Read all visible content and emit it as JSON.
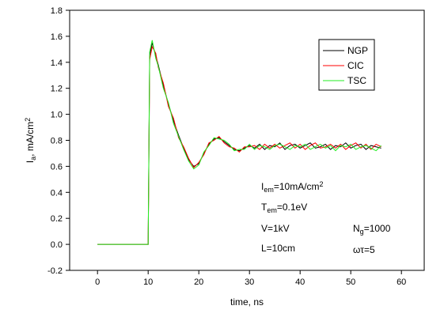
{
  "chart_data": {
    "type": "line",
    "xlabel": "time, ns",
    "ylabel": [
      {
        "text": "I"
      },
      {
        "sub": "a"
      },
      {
        "text": ", mA/cm"
      },
      {
        "sup": "2"
      }
    ],
    "x": [
      0,
      10,
      10.3,
      10.8,
      11.5,
      12,
      13,
      14,
      15,
      16,
      17,
      18,
      19,
      20,
      21,
      22,
      23,
      24,
      25,
      26,
      27,
      28,
      29,
      30,
      31,
      32,
      33,
      34,
      35,
      36,
      37,
      38,
      39,
      40,
      41,
      42,
      43,
      44,
      45,
      46,
      47,
      48,
      49,
      50,
      51,
      52,
      53,
      54,
      55,
      56
    ],
    "series": [
      {
        "name": "NGP",
        "color": "#000000",
        "values": [
          0,
          0,
          1.45,
          1.55,
          1.45,
          1.38,
          1.22,
          1.08,
          0.95,
          0.84,
          0.74,
          0.65,
          0.6,
          0.62,
          0.7,
          0.77,
          0.81,
          0.82,
          0.79,
          0.76,
          0.73,
          0.72,
          0.74,
          0.76,
          0.74,
          0.77,
          0.73,
          0.76,
          0.75,
          0.78,
          0.73,
          0.76,
          0.77,
          0.74,
          0.76,
          0.78,
          0.74,
          0.75,
          0.77,
          0.73,
          0.76,
          0.75,
          0.78,
          0.74,
          0.76,
          0.77,
          0.73,
          0.76,
          0.75,
          0.74
        ]
      },
      {
        "name": "CIC",
        "color": "#ff0000",
        "values": [
          0,
          0,
          1.42,
          1.52,
          1.47,
          1.36,
          1.24,
          1.06,
          0.97,
          0.82,
          0.75,
          0.66,
          0.59,
          0.63,
          0.69,
          0.78,
          0.8,
          0.83,
          0.78,
          0.75,
          0.74,
          0.71,
          0.75,
          0.75,
          0.76,
          0.73,
          0.77,
          0.74,
          0.77,
          0.74,
          0.76,
          0.78,
          0.74,
          0.77,
          0.73,
          0.76,
          0.78,
          0.74,
          0.75,
          0.77,
          0.74,
          0.77,
          0.73,
          0.76,
          0.78,
          0.74,
          0.77,
          0.73,
          0.77,
          0.75
        ]
      },
      {
        "name": "TSC",
        "color": "#22ee22",
        "values": [
          0,
          0,
          1.48,
          1.57,
          1.43,
          1.37,
          1.2,
          1.09,
          0.93,
          0.83,
          0.73,
          0.64,
          0.58,
          0.61,
          0.71,
          0.76,
          0.82,
          0.81,
          0.8,
          0.77,
          0.72,
          0.73,
          0.73,
          0.77,
          0.73,
          0.76,
          0.75,
          0.73,
          0.76,
          0.77,
          0.75,
          0.73,
          0.76,
          0.75,
          0.77,
          0.73,
          0.75,
          0.77,
          0.74,
          0.76,
          0.72,
          0.76,
          0.75,
          0.77,
          0.73,
          0.75,
          0.76,
          0.74,
          0.72,
          0.76
        ]
      }
    ],
    "xlim": [
      -5.5,
      64.5
    ],
    "ylim": [
      -0.2,
      1.8
    ],
    "xticks": [
      0,
      10,
      20,
      30,
      40,
      50,
      60
    ],
    "yticks": [
      -0.2,
      {
        "value": 0,
        "label": "0.0"
      },
      0.2,
      0.4,
      0.6,
      0.8,
      {
        "value": 1,
        "label": "1.0"
      },
      1.2,
      1.4,
      1.6,
      1.8
    ],
    "legend": "upper right",
    "annotations": [
      [
        {
          "text": "I"
        },
        {
          "sub": "em"
        },
        {
          "text": "=10mA/cm"
        },
        {
          "sup": "2"
        }
      ],
      [
        {
          "text": "T"
        },
        {
          "sub": "em"
        },
        {
          "text": "=0.1eV"
        }
      ],
      [
        {
          "text": "V=1kV"
        }
      ],
      [
        {
          "text": "L=10cm"
        }
      ],
      [
        {
          "text": "N"
        },
        {
          "sub": "g"
        },
        {
          "text": "=1000"
        }
      ],
      [
        {
          "text": "ωτ=5"
        }
      ]
    ]
  }
}
